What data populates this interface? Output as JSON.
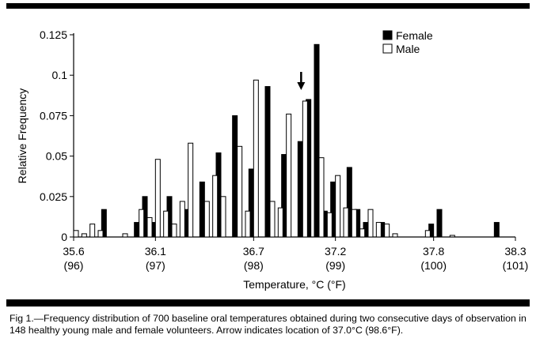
{
  "chart_data": {
    "type": "bar",
    "ylabel": "Relative Frequency",
    "xlabel": "Temperature, °C (°F)",
    "ylim": [
      0,
      0.125
    ],
    "yticks": [
      {
        "value": 0,
        "label": "0"
      },
      {
        "value": 0.025,
        "label": "0.025"
      },
      {
        "value": 0.05,
        "label": "0.05"
      },
      {
        "value": 0.075,
        "label": "0.075"
      },
      {
        "value": 0.1,
        "label": "0.1"
      },
      {
        "value": 0.125,
        "label": "0.125"
      }
    ],
    "xlim": [
      35.6,
      38.3
    ],
    "xticks": [
      {
        "value": 35.6,
        "c": "35.6",
        "f": "(96)"
      },
      {
        "value": 36.1,
        "c": "36.1",
        "f": "(97)"
      },
      {
        "value": 36.7,
        "c": "36.7",
        "f": "(98)"
      },
      {
        "value": 37.2,
        "c": "37.2",
        "f": "(99)"
      },
      {
        "value": 37.8,
        "c": "37.8",
        "f": "(100)"
      },
      {
        "value": 38.3,
        "c": "38.3",
        "f": "(101)"
      }
    ],
    "legend_position": "top-right",
    "arrow_at": 37.0,
    "series": [
      {
        "name": "Female",
        "color": "#000000",
        "values": [
          [
            35.8,
            0.017
          ],
          [
            36.0,
            0.009
          ],
          [
            36.05,
            0.025
          ],
          [
            36.1,
            0.009
          ],
          [
            36.2,
            0.025
          ],
          [
            36.3,
            0.017
          ],
          [
            36.4,
            0.034
          ],
          [
            36.5,
            0.052
          ],
          [
            36.6,
            0.075
          ],
          [
            36.7,
            0.042
          ],
          [
            36.8,
            0.093
          ],
          [
            36.9,
            0.051
          ],
          [
            37.0,
            0.059
          ],
          [
            37.05,
            0.085
          ],
          [
            37.1,
            0.119
          ],
          [
            37.15,
            0.016
          ],
          [
            37.2,
            0.034
          ],
          [
            37.3,
            0.043
          ],
          [
            37.35,
            0.017
          ],
          [
            37.4,
            0.009
          ],
          [
            37.5,
            0.009
          ],
          [
            37.8,
            0.008
          ],
          [
            37.85,
            0.017
          ],
          [
            38.2,
            0.009
          ]
        ]
      },
      {
        "name": "Male",
        "color": "#ffffff",
        "values": [
          [
            35.6,
            0.004
          ],
          [
            35.65,
            0.002
          ],
          [
            35.7,
            0.008
          ],
          [
            35.75,
            0.004
          ],
          [
            35.9,
            0.002
          ],
          [
            36.0,
            0.017
          ],
          [
            36.05,
            0.012
          ],
          [
            36.1,
            0.048
          ],
          [
            36.15,
            0.016
          ],
          [
            36.2,
            0.008
          ],
          [
            36.25,
            0.022
          ],
          [
            36.3,
            0.058
          ],
          [
            36.4,
            0.022
          ],
          [
            36.45,
            0.038
          ],
          [
            36.5,
            0.025
          ],
          [
            36.6,
            0.056
          ],
          [
            36.65,
            0.016
          ],
          [
            36.7,
            0.097
          ],
          [
            36.8,
            0.022
          ],
          [
            36.85,
            0.018
          ],
          [
            36.9,
            0.076
          ],
          [
            37.0,
            0.084
          ],
          [
            37.1,
            0.031
          ],
          [
            37.1,
            0.049
          ],
          [
            37.15,
            0.015
          ],
          [
            37.2,
            0.038
          ],
          [
            37.25,
            0.018
          ],
          [
            37.3,
            0.017
          ],
          [
            37.35,
            0.005
          ],
          [
            37.4,
            0.017
          ],
          [
            37.45,
            0.009
          ],
          [
            37.5,
            0.008
          ],
          [
            37.55,
            0.002
          ],
          [
            37.75,
            0.004
          ],
          [
            37.9,
            0.001
          ]
        ]
      }
    ]
  },
  "caption": "Fig 1.—Frequency distribution of 700 baseline oral temperatures obtained during two consecutive days of observation in 148 healthy young male and female volunteers. Arrow indicates location of 37.0°C (98.6°F)."
}
